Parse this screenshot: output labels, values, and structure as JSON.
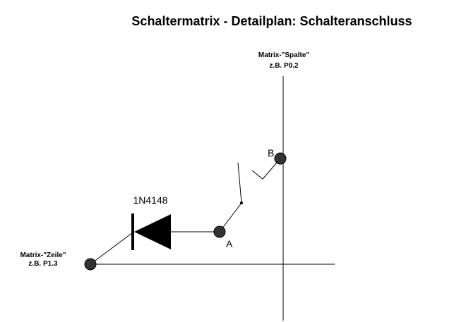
{
  "title": "Schaltermatrix - Detailplan: Schalteranschluss",
  "column_line": {
    "label_line1": "Matrix-\"Spalte\"",
    "label_line2": "z.B. P0.2"
  },
  "row_line": {
    "label_line1": "Matrix-\"Zeile\"",
    "label_line2": "z.B. P1.3"
  },
  "diode": {
    "label": "1N4148"
  },
  "nodes": {
    "a_label": "A",
    "b_label": "B"
  },
  "colors": {
    "ink": "#000000",
    "node_fill": "#333333",
    "background": "#ffffff"
  }
}
